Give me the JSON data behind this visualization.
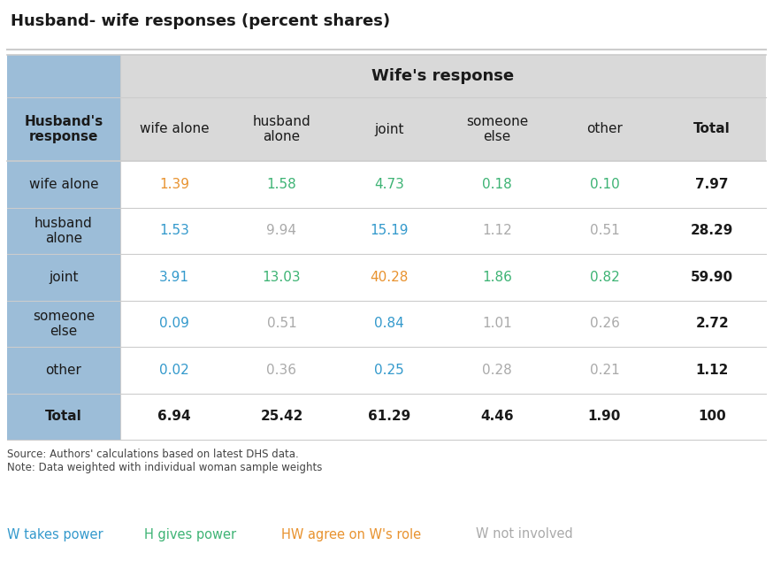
{
  "title": "Husband- wife responses (percent shares)",
  "wife_header": "Wife's response",
  "husband_header": "Husband's\nresponse",
  "col_headers": [
    "wife alone",
    "husband\nalone",
    "joint",
    "someone\nelse",
    "other",
    "Total"
  ],
  "row_headers": [
    "wife alone",
    "husband\nalone",
    "joint",
    "someone\nelse",
    "other",
    "Total"
  ],
  "data": [
    [
      "1.39",
      "1.58",
      "4.73",
      "0.18",
      "0.10",
      "7.97"
    ],
    [
      "1.53",
      "9.94",
      "15.19",
      "1.12",
      "0.51",
      "28.29"
    ],
    [
      "3.91",
      "13.03",
      "40.28",
      "1.86",
      "0.82",
      "59.90"
    ],
    [
      "0.09",
      "0.51",
      "0.84",
      "1.01",
      "0.26",
      "2.72"
    ],
    [
      "0.02",
      "0.36",
      "0.25",
      "0.28",
      "0.21",
      "1.12"
    ],
    [
      "6.94",
      "25.42",
      "61.29",
      "4.46",
      "1.90",
      "100"
    ]
  ],
  "colors": [
    [
      "#e8922e",
      "#3db374",
      "#3db374",
      "#3db374",
      "#3db374",
      "#1a1a1a"
    ],
    [
      "#3399cc",
      "#aaaaaa",
      "#3399cc",
      "#aaaaaa",
      "#aaaaaa",
      "#1a1a1a"
    ],
    [
      "#3399cc",
      "#3db374",
      "#e8922e",
      "#3db374",
      "#3db374",
      "#1a1a1a"
    ],
    [
      "#3399cc",
      "#aaaaaa",
      "#3399cc",
      "#aaaaaa",
      "#aaaaaa",
      "#1a1a1a"
    ],
    [
      "#3399cc",
      "#aaaaaa",
      "#3399cc",
      "#aaaaaa",
      "#aaaaaa",
      "#1a1a1a"
    ],
    [
      "#1a1a1a",
      "#1a1a1a",
      "#1a1a1a",
      "#1a1a1a",
      "#1a1a1a",
      "#1a1a1a"
    ]
  ],
  "bold_cells": [
    [
      false,
      false,
      false,
      false,
      false,
      true
    ],
    [
      false,
      false,
      false,
      false,
      false,
      true
    ],
    [
      false,
      false,
      false,
      false,
      false,
      true
    ],
    [
      false,
      false,
      false,
      false,
      false,
      true
    ],
    [
      false,
      false,
      false,
      false,
      false,
      true
    ],
    [
      true,
      true,
      true,
      true,
      true,
      true
    ]
  ],
  "source_text": "Source: Authors' calculations based on latest DHS data.\nNote: Data weighted with individual woman sample weights",
  "legend_items": [
    {
      "label": "W takes power",
      "color": "#3399cc"
    },
    {
      "label": "H gives power",
      "color": "#3db374"
    },
    {
      "label": "HW agree on W's role",
      "color": "#e8922e"
    },
    {
      "label": "W not involved",
      "color": "#aaaaaa"
    }
  ],
  "header_bg": "#d9d9d9",
  "row_header_bg": "#9cbdd8",
  "white_bg": "#ffffff",
  "line_color": "#cccccc"
}
